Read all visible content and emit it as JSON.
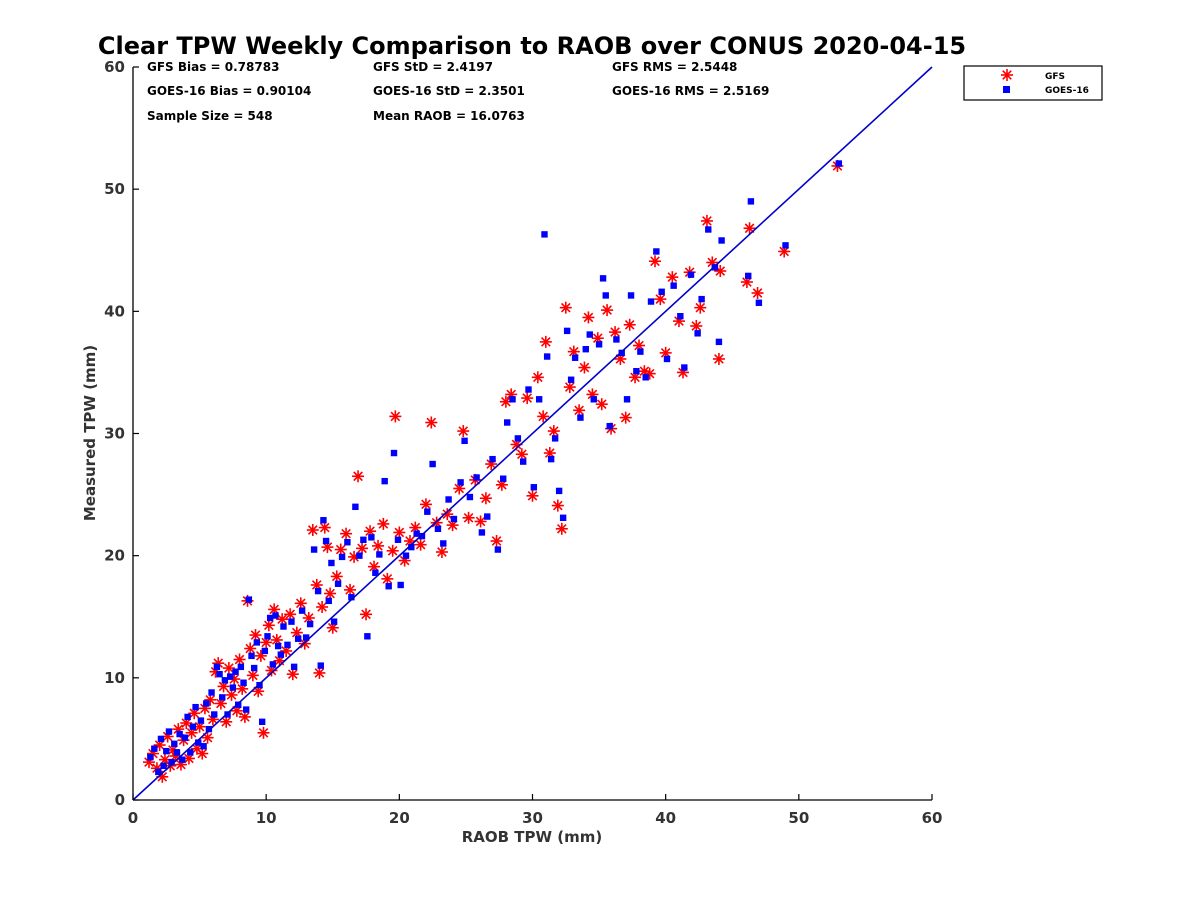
{
  "chart_data": {
    "type": "scatter",
    "title": "Clear TPW Weekly Comparison to RAOB over CONUS 2020-04-15",
    "xlabel": "RAOB TPW (mm)",
    "ylabel": "Measured TPW (mm)",
    "xlim": [
      0,
      60
    ],
    "ylim": [
      0,
      60
    ],
    "xticks": [
      0,
      10,
      20,
      30,
      40,
      50,
      60
    ],
    "yticks": [
      0,
      10,
      20,
      30,
      40,
      50,
      60
    ],
    "grid": false,
    "legend_position": "top-right-outside",
    "reference_line": {
      "x": [
        0,
        60
      ],
      "y": [
        0,
        60
      ],
      "color": "#0000cc"
    },
    "stats": [
      {
        "text": "GFS Bias = 0.78783"
      },
      {
        "text": "GFS StD = 2.4197"
      },
      {
        "text": "GFS RMS = 2.5448"
      },
      {
        "text": "GOES-16 Bias = 0.90104"
      },
      {
        "text": "GOES-16 StD = 2.3501"
      },
      {
        "text": "GOES-16 RMS = 2.5169"
      },
      {
        "text": "Sample Size = 548"
      },
      {
        "text": "Mean RAOB = 16.0763"
      }
    ],
    "series": [
      {
        "name": "GFS",
        "marker": "asterisk",
        "color": "#ff0000",
        "points": [
          [
            1.2,
            3.1
          ],
          [
            1.5,
            3.8
          ],
          [
            1.8,
            2.6
          ],
          [
            2.0,
            4.5
          ],
          [
            2.2,
            1.9
          ],
          [
            2.4,
            3.3
          ],
          [
            2.6,
            5.2
          ],
          [
            2.8,
            2.8
          ],
          [
            3.0,
            4.1
          ],
          [
            3.2,
            3.6
          ],
          [
            3.4,
            5.8
          ],
          [
            3.6,
            2.9
          ],
          [
            3.8,
            4.9
          ],
          [
            4.0,
            6.3
          ],
          [
            4.2,
            3.4
          ],
          [
            4.4,
            5.5
          ],
          [
            4.6,
            7.1
          ],
          [
            4.8,
            4.2
          ],
          [
            5.0,
            6.0
          ],
          [
            5.2,
            3.8
          ],
          [
            5.4,
            7.5
          ],
          [
            5.6,
            5.1
          ],
          [
            5.8,
            8.2
          ],
          [
            6.0,
            6.6
          ],
          [
            6.2,
            10.5
          ],
          [
            6.4,
            11.2
          ],
          [
            6.6,
            7.9
          ],
          [
            6.8,
            9.3
          ],
          [
            7.0,
            6.4
          ],
          [
            7.2,
            10.8
          ],
          [
            7.4,
            8.6
          ],
          [
            7.6,
            9.9
          ],
          [
            7.8,
            7.3
          ],
          [
            8.0,
            11.5
          ],
          [
            8.2,
            9.1
          ],
          [
            8.4,
            6.8
          ],
          [
            8.6,
            16.3
          ],
          [
            8.8,
            12.4
          ],
          [
            9.0,
            10.2
          ],
          [
            9.2,
            13.5
          ],
          [
            9.4,
            8.9
          ],
          [
            9.6,
            11.8
          ],
          [
            9.8,
            5.5
          ],
          [
            10.0,
            12.9
          ],
          [
            10.2,
            14.3
          ],
          [
            10.4,
            10.6
          ],
          [
            10.6,
            15.6
          ],
          [
            10.8,
            13.1
          ],
          [
            11.0,
            11.4
          ],
          [
            11.2,
            14.8
          ],
          [
            11.5,
            12.2
          ],
          [
            11.8,
            15.2
          ],
          [
            12.0,
            10.3
          ],
          [
            12.3,
            13.7
          ],
          [
            12.6,
            16.1
          ],
          [
            12.9,
            12.8
          ],
          [
            13.2,
            14.9
          ],
          [
            13.5,
            22.1
          ],
          [
            13.8,
            17.6
          ],
          [
            14.0,
            10.4
          ],
          [
            14.2,
            15.8
          ],
          [
            14.4,
            22.3
          ],
          [
            14.6,
            20.7
          ],
          [
            14.8,
            16.9
          ],
          [
            15.0,
            14.1
          ],
          [
            15.3,
            18.3
          ],
          [
            15.6,
            20.5
          ],
          [
            16.0,
            21.8
          ],
          [
            16.3,
            17.2
          ],
          [
            16.6,
            19.9
          ],
          [
            16.9,
            26.5
          ],
          [
            17.2,
            20.6
          ],
          [
            17.5,
            15.2
          ],
          [
            17.8,
            22.0
          ],
          [
            18.1,
            19.1
          ],
          [
            18.4,
            20.8
          ],
          [
            18.8,
            22.6
          ],
          [
            19.1,
            18.1
          ],
          [
            19.5,
            20.4
          ],
          [
            19.7,
            31.4
          ],
          [
            20.0,
            21.9
          ],
          [
            20.4,
            19.6
          ],
          [
            20.8,
            21.2
          ],
          [
            21.2,
            22.3
          ],
          [
            21.6,
            20.9
          ],
          [
            22.0,
            24.2
          ],
          [
            22.4,
            30.9
          ],
          [
            22.8,
            22.7
          ],
          [
            23.2,
            20.3
          ],
          [
            23.6,
            23.4
          ],
          [
            24.0,
            22.5
          ],
          [
            24.5,
            25.5
          ],
          [
            24.8,
            30.2
          ],
          [
            25.2,
            23.1
          ],
          [
            25.7,
            26.2
          ],
          [
            26.1,
            22.8
          ],
          [
            26.5,
            24.7
          ],
          [
            26.9,
            27.5
          ],
          [
            27.3,
            21.2
          ],
          [
            27.7,
            25.8
          ],
          [
            28.0,
            32.6
          ],
          [
            28.4,
            33.2
          ],
          [
            28.8,
            29.1
          ],
          [
            29.2,
            28.3
          ],
          [
            29.6,
            32.9
          ],
          [
            30.0,
            24.9
          ],
          [
            30.4,
            34.6
          ],
          [
            30.8,
            31.4
          ],
          [
            31.0,
            37.5
          ],
          [
            31.3,
            28.4
          ],
          [
            31.6,
            30.2
          ],
          [
            31.9,
            24.1
          ],
          [
            32.2,
            22.2
          ],
          [
            32.5,
            40.3
          ],
          [
            32.8,
            33.8
          ],
          [
            33.1,
            36.7
          ],
          [
            33.5,
            31.9
          ],
          [
            33.9,
            35.4
          ],
          [
            34.2,
            39.5
          ],
          [
            34.5,
            33.2
          ],
          [
            34.9,
            37.8
          ],
          [
            35.2,
            32.4
          ],
          [
            35.6,
            40.1
          ],
          [
            35.9,
            30.4
          ],
          [
            36.2,
            38.3
          ],
          [
            36.6,
            36.1
          ],
          [
            37.0,
            31.3
          ],
          [
            37.3,
            38.9
          ],
          [
            37.7,
            34.6
          ],
          [
            38.0,
            37.2
          ],
          [
            38.4,
            35.1
          ],
          [
            38.8,
            34.9
          ],
          [
            39.2,
            44.1
          ],
          [
            39.6,
            41.0
          ],
          [
            40.0,
            36.6
          ],
          [
            40.5,
            42.8
          ],
          [
            41.0,
            39.2
          ],
          [
            41.3,
            35.0
          ],
          [
            41.8,
            43.2
          ],
          [
            42.3,
            38.8
          ],
          [
            42.6,
            40.3
          ],
          [
            43.1,
            47.4
          ],
          [
            43.5,
            44.0
          ],
          [
            44.1,
            43.3
          ],
          [
            44.0,
            36.1
          ],
          [
            46.1,
            42.4
          ],
          [
            46.3,
            46.8
          ],
          [
            46.9,
            41.5
          ],
          [
            48.9,
            44.9
          ],
          [
            52.9,
            51.9
          ]
        ]
      },
      {
        "name": "GOES-16",
        "marker": "square",
        "color": "#0000ff",
        "points": [
          [
            1.3,
            3.5
          ],
          [
            1.6,
            4.2
          ],
          [
            1.9,
            2.3
          ],
          [
            2.1,
            5.0
          ],
          [
            2.3,
            2.8
          ],
          [
            2.5,
            4.0
          ],
          [
            2.7,
            5.6
          ],
          [
            2.9,
            3.1
          ],
          [
            3.1,
            4.6
          ],
          [
            3.3,
            3.9
          ],
          [
            3.5,
            5.4
          ],
          [
            3.7,
            3.3
          ],
          [
            3.9,
            5.1
          ],
          [
            4.1,
            6.8
          ],
          [
            4.3,
            3.9
          ],
          [
            4.5,
            6.0
          ],
          [
            4.7,
            7.6
          ],
          [
            4.9,
            4.7
          ],
          [
            5.1,
            6.5
          ],
          [
            5.3,
            4.4
          ],
          [
            5.5,
            7.9
          ],
          [
            5.7,
            5.8
          ],
          [
            5.9,
            8.8
          ],
          [
            6.1,
            7.0
          ],
          [
            6.3,
            10.9
          ],
          [
            6.5,
            10.3
          ],
          [
            6.7,
            8.4
          ],
          [
            6.9,
            9.8
          ],
          [
            7.1,
            7.0
          ],
          [
            7.3,
            10.1
          ],
          [
            7.5,
            9.2
          ],
          [
            7.7,
            10.5
          ],
          [
            7.9,
            7.8
          ],
          [
            8.1,
            10.9
          ],
          [
            8.3,
            9.6
          ],
          [
            8.5,
            7.4
          ],
          [
            8.7,
            16.4
          ],
          [
            8.9,
            11.8
          ],
          [
            9.1,
            10.8
          ],
          [
            9.3,
            12.9
          ],
          [
            9.5,
            9.4
          ],
          [
            9.7,
            6.4
          ],
          [
            9.9,
            12.2
          ],
          [
            10.1,
            13.4
          ],
          [
            10.3,
            14.9
          ],
          [
            10.5,
            11.1
          ],
          [
            10.7,
            15.1
          ],
          [
            10.9,
            12.6
          ],
          [
            11.1,
            11.9
          ],
          [
            11.3,
            14.2
          ],
          [
            11.6,
            12.7
          ],
          [
            11.9,
            14.6
          ],
          [
            12.1,
            10.9
          ],
          [
            12.4,
            13.2
          ],
          [
            12.7,
            15.5
          ],
          [
            13.0,
            13.3
          ],
          [
            13.3,
            14.4
          ],
          [
            13.6,
            20.5
          ],
          [
            13.9,
            17.1
          ],
          [
            14.1,
            11.0
          ],
          [
            14.3,
            22.9
          ],
          [
            14.5,
            21.2
          ],
          [
            14.7,
            16.3
          ],
          [
            14.9,
            19.4
          ],
          [
            15.1,
            14.6
          ],
          [
            15.4,
            17.7
          ],
          [
            15.7,
            19.9
          ],
          [
            16.1,
            21.1
          ],
          [
            16.4,
            16.6
          ],
          [
            16.7,
            24.0
          ],
          [
            17.0,
            20.0
          ],
          [
            17.3,
            21.3
          ],
          [
            17.6,
            13.4
          ],
          [
            17.9,
            21.5
          ],
          [
            18.2,
            18.6
          ],
          [
            18.5,
            20.1
          ],
          [
            18.9,
            26.1
          ],
          [
            19.2,
            17.5
          ],
          [
            19.6,
            28.4
          ],
          [
            19.9,
            21.3
          ],
          [
            20.1,
            17.6
          ],
          [
            20.5,
            20.0
          ],
          [
            20.9,
            20.7
          ],
          [
            21.3,
            21.8
          ],
          [
            21.7,
            21.6
          ],
          [
            22.1,
            23.6
          ],
          [
            22.5,
            27.5
          ],
          [
            22.9,
            22.2
          ],
          [
            23.3,
            21.0
          ],
          [
            23.7,
            24.6
          ],
          [
            24.1,
            23.0
          ],
          [
            24.6,
            26.0
          ],
          [
            24.9,
            29.4
          ],
          [
            25.3,
            24.8
          ],
          [
            25.8,
            26.4
          ],
          [
            26.2,
            21.9
          ],
          [
            26.6,
            23.2
          ],
          [
            27.0,
            27.9
          ],
          [
            27.4,
            20.5
          ],
          [
            27.8,
            26.3
          ],
          [
            28.1,
            30.9
          ],
          [
            28.5,
            32.8
          ],
          [
            28.9,
            29.6
          ],
          [
            29.3,
            27.7
          ],
          [
            29.7,
            33.6
          ],
          [
            30.1,
            25.6
          ],
          [
            30.5,
            32.8
          ],
          [
            30.9,
            46.3
          ],
          [
            31.1,
            36.3
          ],
          [
            31.4,
            27.9
          ],
          [
            31.7,
            29.6
          ],
          [
            32.0,
            25.3
          ],
          [
            32.3,
            23.1
          ],
          [
            32.6,
            38.4
          ],
          [
            32.9,
            34.4
          ],
          [
            33.2,
            36.2
          ],
          [
            33.6,
            31.3
          ],
          [
            34.0,
            36.9
          ],
          [
            34.3,
            38.1
          ],
          [
            34.6,
            32.8
          ],
          [
            35.0,
            37.3
          ],
          [
            35.3,
            42.7
          ],
          [
            35.5,
            41.3
          ],
          [
            35.8,
            30.6
          ],
          [
            36.3,
            37.7
          ],
          [
            36.7,
            36.6
          ],
          [
            37.1,
            32.8
          ],
          [
            37.4,
            41.3
          ],
          [
            37.8,
            35.1
          ],
          [
            38.1,
            36.7
          ],
          [
            38.5,
            34.6
          ],
          [
            38.9,
            40.8
          ],
          [
            39.3,
            44.9
          ],
          [
            39.7,
            41.6
          ],
          [
            40.1,
            36.1
          ],
          [
            40.6,
            42.1
          ],
          [
            41.1,
            39.6
          ],
          [
            41.4,
            35.4
          ],
          [
            41.9,
            43.0
          ],
          [
            42.4,
            38.2
          ],
          [
            42.7,
            41.0
          ],
          [
            43.2,
            46.7
          ],
          [
            43.7,
            43.6
          ],
          [
            44.2,
            45.8
          ],
          [
            44.0,
            37.5
          ],
          [
            46.2,
            42.9
          ],
          [
            46.4,
            49.0
          ],
          [
            47.0,
            40.7
          ],
          [
            49.0,
            45.4
          ],
          [
            53.0,
            52.1
          ]
        ]
      }
    ]
  }
}
